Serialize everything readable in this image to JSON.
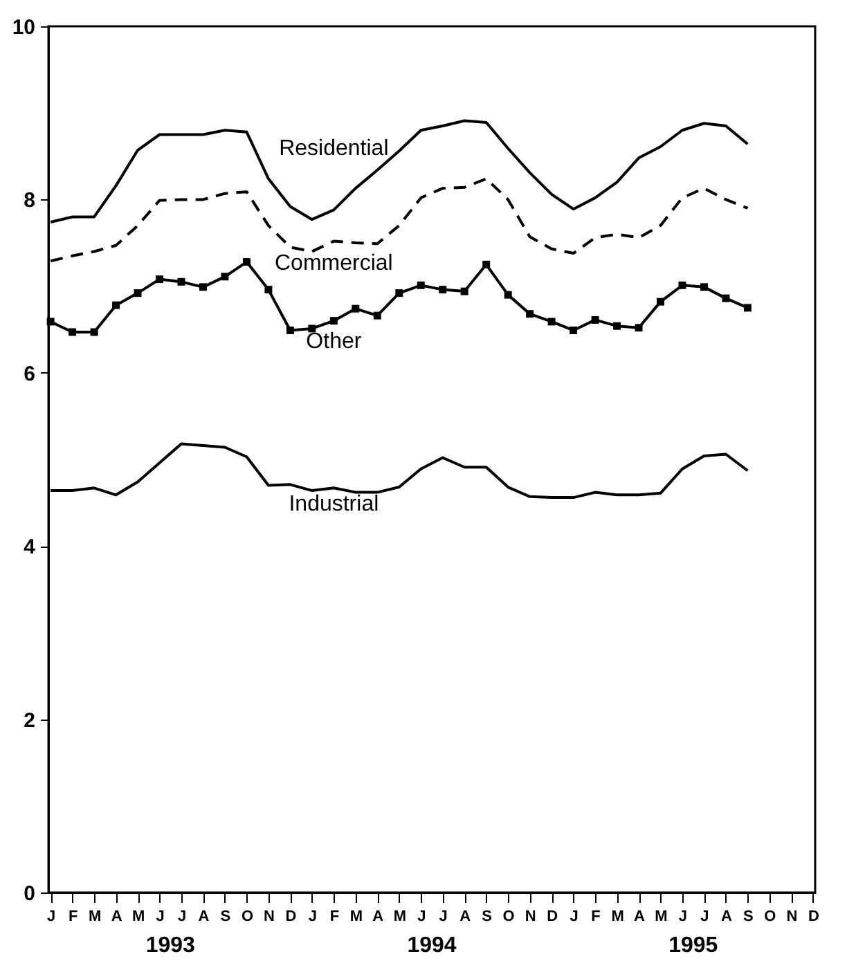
{
  "chart_data": {
    "type": "line",
    "categories": [
      "J",
      "F",
      "M",
      "A",
      "M",
      "J",
      "J",
      "A",
      "S",
      "O",
      "N",
      "D",
      "J",
      "F",
      "M",
      "A",
      "M",
      "J",
      "J",
      "A",
      "S",
      "O",
      "N",
      "D",
      "J",
      "F",
      "M",
      "A",
      "M",
      "J",
      "J",
      "A",
      "S",
      "O",
      "N",
      "D"
    ],
    "series": [
      {
        "name": "Residential",
        "color": "#000000",
        "line_style": "solid",
        "values": [
          7.74,
          7.8,
          7.8,
          8.16,
          8.57,
          8.75,
          8.75,
          8.75,
          8.8,
          8.78,
          8.24,
          7.92,
          7.77,
          7.88,
          8.13,
          8.34,
          8.56,
          8.8,
          8.85,
          8.91,
          8.89,
          8.59,
          8.31,
          8.06,
          7.89,
          8.02,
          8.2,
          8.48,
          8.61,
          8.8,
          8.88,
          8.85,
          8.64,
          null,
          null,
          null
        ]
      },
      {
        "name": "Commercial",
        "color": "#000000",
        "line_style": "dashed",
        "values": [
          7.29,
          7.35,
          7.4,
          7.47,
          7.7,
          7.99,
          8.0,
          8.0,
          8.07,
          8.09,
          7.7,
          7.45,
          7.4,
          7.52,
          7.5,
          7.49,
          7.7,
          8.02,
          8.13,
          8.14,
          8.24,
          8.0,
          7.57,
          7.43,
          7.38,
          7.56,
          7.6,
          7.56,
          7.7,
          8.02,
          8.13,
          8.0,
          7.9,
          null,
          null,
          null
        ]
      },
      {
        "name": "Other",
        "color": "#000000",
        "line_style": "solid",
        "marker": "square",
        "values": [
          6.59,
          6.47,
          6.47,
          6.78,
          6.92,
          7.08,
          7.05,
          6.99,
          7.11,
          7.28,
          6.96,
          6.49,
          6.51,
          6.6,
          6.74,
          6.66,
          6.92,
          7.01,
          6.96,
          6.94,
          7.25,
          6.9,
          6.68,
          6.59,
          6.49,
          6.61,
          6.54,
          6.52,
          6.82,
          7.01,
          6.99,
          6.86,
          6.75,
          null,
          null,
          null
        ]
      },
      {
        "name": "Industrial",
        "color": "#000000",
        "line_style": "solid",
        "values": [
          4.64,
          4.64,
          4.67,
          4.59,
          4.74,
          4.96,
          5.18,
          5.16,
          5.14,
          5.03,
          4.7,
          4.71,
          4.64,
          4.67,
          4.62,
          4.62,
          4.68,
          4.89,
          5.02,
          4.91,
          4.91,
          4.68,
          4.57,
          4.56,
          4.56,
          4.62,
          4.59,
          4.59,
          4.61,
          4.89,
          5.04,
          5.06,
          4.87,
          null,
          null,
          null
        ]
      }
    ],
    "ylim": [
      0,
      10
    ],
    "yticks": [
      0,
      2,
      4,
      6,
      8,
      10
    ],
    "annotations": [
      "1993",
      "1994",
      "1995"
    ]
  }
}
